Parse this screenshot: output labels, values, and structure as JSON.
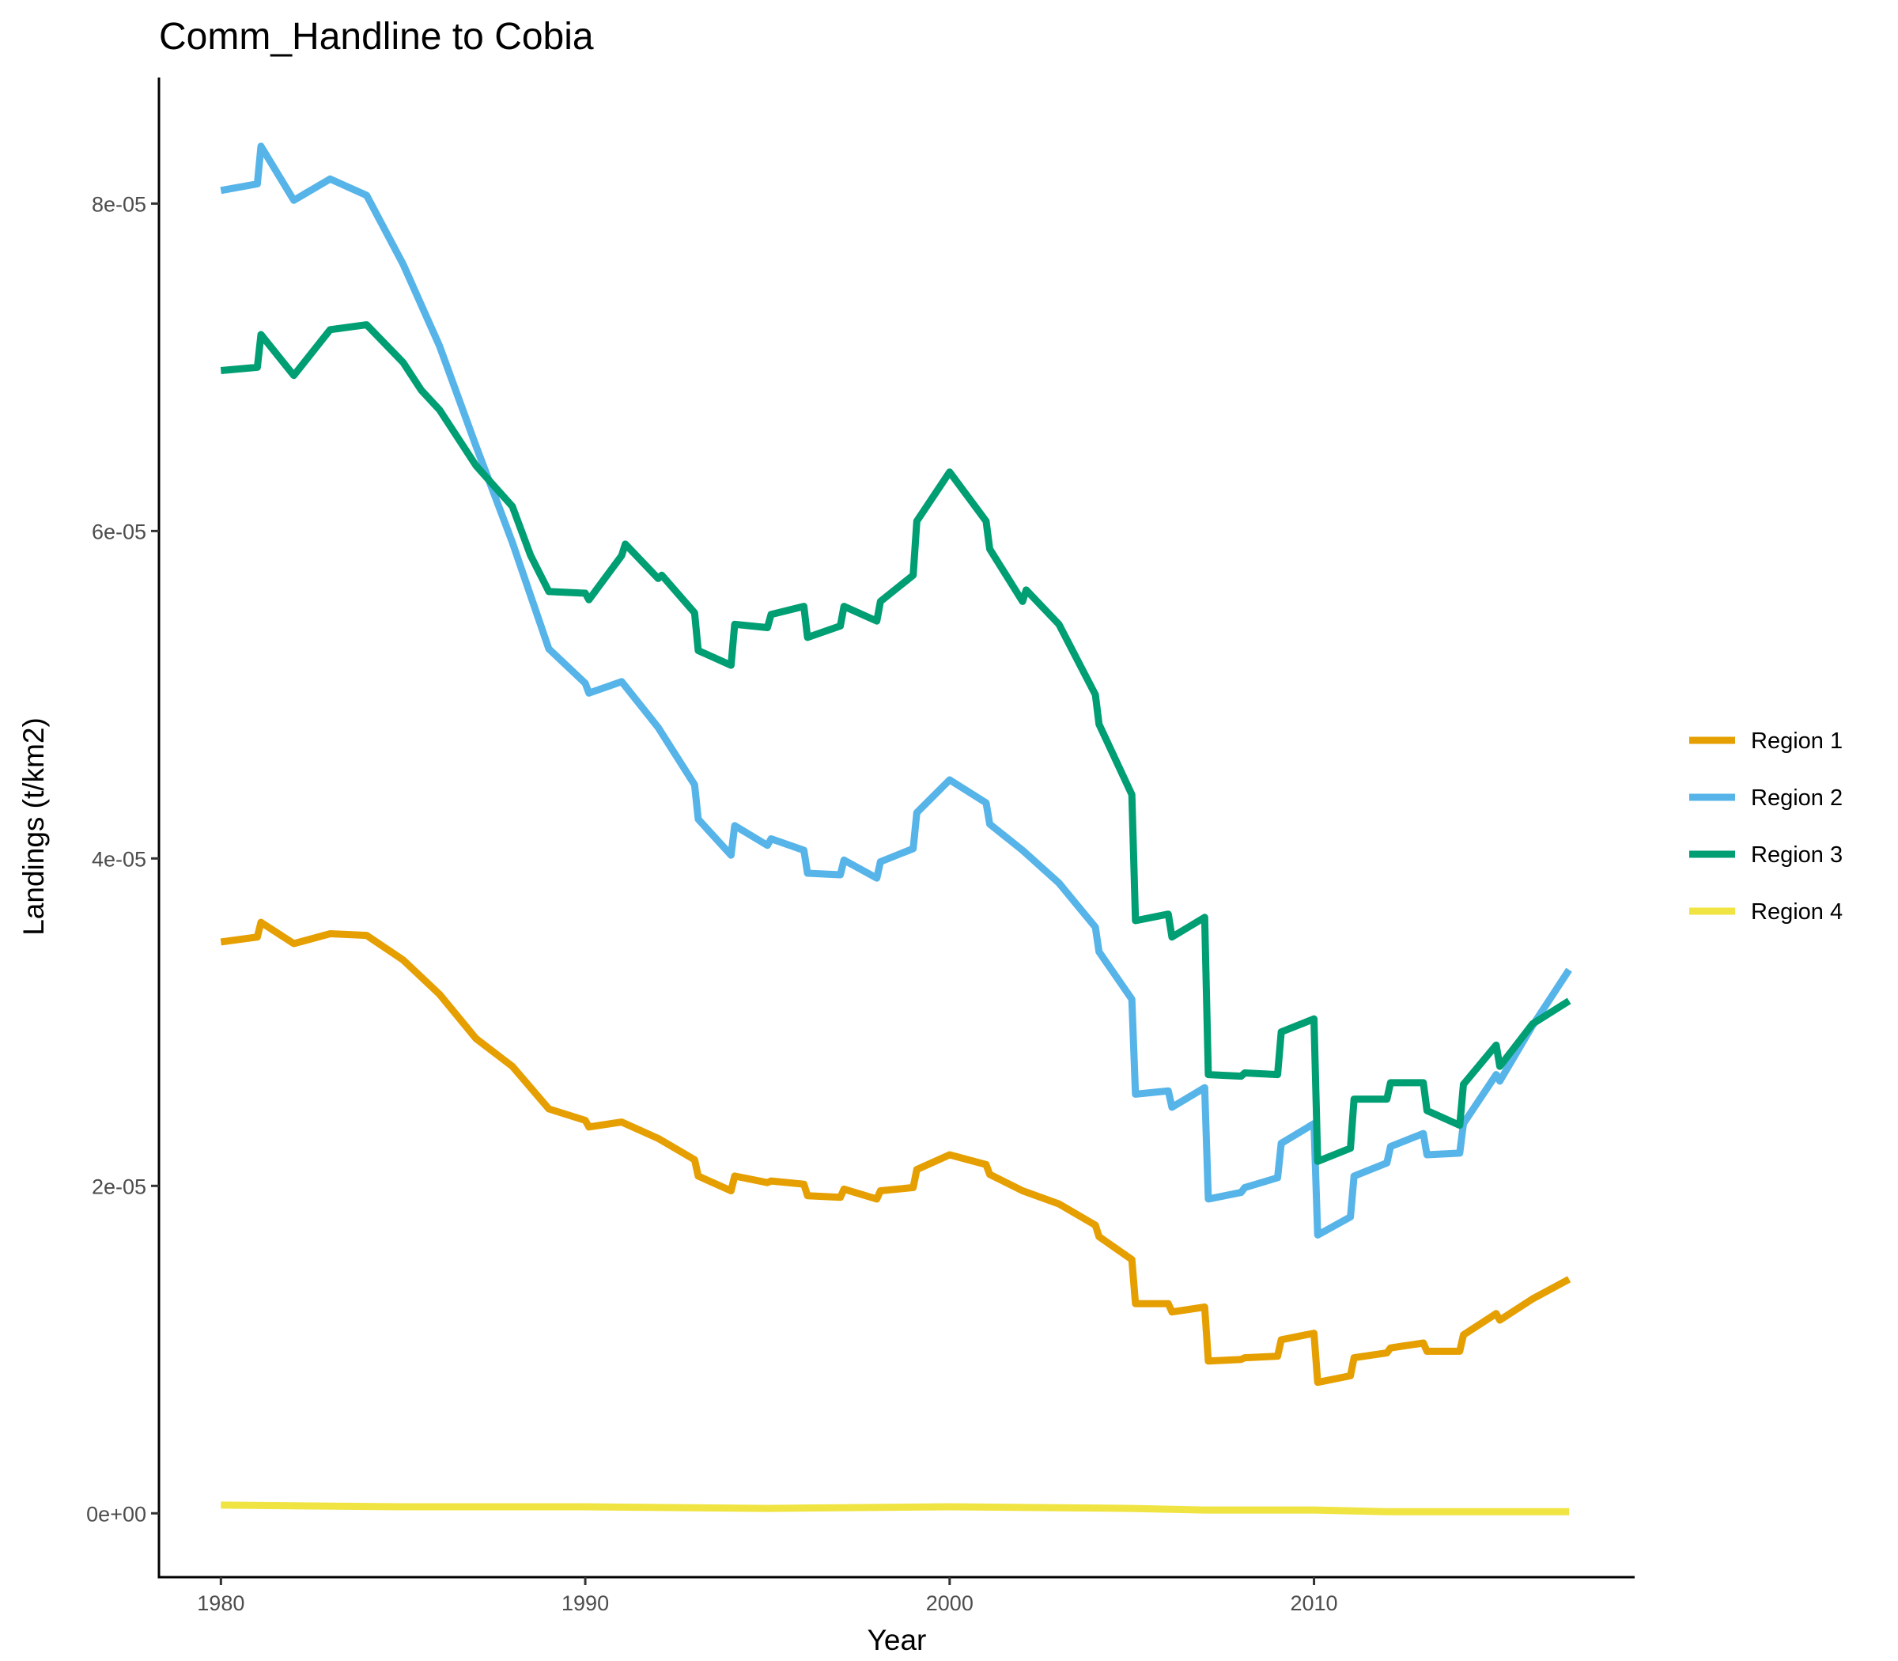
{
  "chart_data": {
    "type": "line",
    "title": "Comm_Handline to Cobia",
    "xlabel": "Year",
    "ylabel": "Landings (t/km2)",
    "xlim": [
      1978.3,
      2018.8
    ],
    "ylim": [
      -3.9e-06,
      8.77e-05
    ],
    "x_ticks": [
      1980,
      1990,
      2000,
      2010
    ],
    "x_tick_labels": [
      "1980",
      "1990",
      "2000",
      "2010"
    ],
    "y_ticks": [
      0,
      2e-05,
      4e-05,
      6e-05,
      8e-05
    ],
    "y_tick_labels": [
      "0e+00",
      "2e-05",
      "4e-05",
      "6e-05",
      "8e-05"
    ],
    "grid": false,
    "legend_position": "right",
    "series": [
      {
        "name": "Region 1",
        "color": "#E69F00",
        "x": [
          1980.0,
          1981.0,
          1981.1,
          1982.0,
          1983.0,
          1984.0,
          1985.0,
          1986.0,
          1987.0,
          1988.0,
          1989.0,
          1990.0,
          1990.1,
          1991.0,
          1992.0,
          1993.0,
          1993.1,
          1994.0,
          1994.1,
          1995.0,
          1995.1,
          1996.0,
          1996.1,
          1997.0,
          1997.1,
          1998.0,
          1998.1,
          1999.0,
          1999.1,
          2000.0,
          2001.0,
          2001.1,
          2002.0,
          2003.0,
          2004.0,
          2004.1,
          2005.0,
          2005.1,
          2006.0,
          2006.1,
          2007.0,
          2007.1,
          2008.0,
          2008.1,
          2009.0,
          2009.1,
          2010.0,
          2010.1,
          2011.0,
          2011.1,
          2012.0,
          2012.1,
          2013.0,
          2013.1,
          2014.0,
          2014.1,
          2015.0,
          2015.1,
          2016.0,
          2017.0
        ],
        "values": [
          3.49e-05,
          3.52e-05,
          3.61e-05,
          3.48e-05,
          3.54e-05,
          3.53e-05,
          3.38e-05,
          3.17e-05,
          2.9e-05,
          2.73e-05,
          2.47e-05,
          2.4e-05,
          2.36e-05,
          2.39e-05,
          2.29e-05,
          2.16e-05,
          2.06e-05,
          1.97e-05,
          2.06e-05,
          2.02e-05,
          2.03e-05,
          2.01e-05,
          1.94e-05,
          1.93e-05,
          1.98e-05,
          1.92e-05,
          1.97e-05,
          1.99e-05,
          2.1e-05,
          2.19e-05,
          2.13e-05,
          2.07e-05,
          1.97e-05,
          1.89e-05,
          1.76e-05,
          1.69e-05,
          1.55e-05,
          1.28e-05,
          1.28e-05,
          1.23e-05,
          1.26e-05,
          9.3e-06,
          9.4e-06,
          9.5e-06,
          9.6e-06,
          1.06e-05,
          1.1e-05,
          8e-06,
          8.4e-06,
          9.5e-06,
          9.8e-06,
          1.01e-05,
          1.04e-05,
          9.9e-06,
          9.9e-06,
          1.09e-05,
          1.22e-05,
          1.18e-05,
          1.31e-05,
          1.43e-05
        ]
      },
      {
        "name": "Region 2",
        "color": "#56B4E9",
        "x": [
          1980.0,
          1981.0,
          1981.1,
          1982.0,
          1983.0,
          1984.0,
          1985.0,
          1986.0,
          1987.0,
          1988.0,
          1989.0,
          1990.0,
          1990.1,
          1991.0,
          1992.0,
          1993.0,
          1993.1,
          1994.0,
          1994.1,
          1995.0,
          1995.1,
          1996.0,
          1996.1,
          1997.0,
          1997.1,
          1998.0,
          1998.1,
          1999.0,
          1999.1,
          2000.0,
          2001.0,
          2001.1,
          2002.0,
          2003.0,
          2004.0,
          2004.1,
          2005.0,
          2005.1,
          2006.0,
          2006.1,
          2007.0,
          2007.1,
          2008.0,
          2008.1,
          2009.0,
          2009.1,
          2010.0,
          2010.1,
          2011.0,
          2011.1,
          2012.0,
          2012.1,
          2013.0,
          2013.1,
          2014.0,
          2014.1,
          2015.0,
          2015.1,
          2016.0,
          2017.0
        ],
        "values": [
          8.08e-05,
          8.12e-05,
          8.35e-05,
          8.02e-05,
          8.15e-05,
          8.05e-05,
          7.63e-05,
          7.13e-05,
          6.52e-05,
          5.93e-05,
          5.28e-05,
          5.07e-05,
          5.01e-05,
          5.08e-05,
          4.8e-05,
          4.45e-05,
          4.24e-05,
          4.02e-05,
          4.2e-05,
          4.08e-05,
          4.12e-05,
          4.05e-05,
          3.91e-05,
          3.9e-05,
          3.99e-05,
          3.88e-05,
          3.98e-05,
          4.06e-05,
          4.28e-05,
          4.48e-05,
          4.34e-05,
          4.21e-05,
          4.05e-05,
          3.85e-05,
          3.58e-05,
          3.43e-05,
          3.14e-05,
          2.56e-05,
          2.58e-05,
          2.48e-05,
          2.6e-05,
          1.92e-05,
          1.96e-05,
          1.99e-05,
          2.05e-05,
          2.26e-05,
          2.38e-05,
          1.7e-05,
          1.81e-05,
          2.06e-05,
          2.14e-05,
          2.24e-05,
          2.32e-05,
          2.19e-05,
          2.2e-05,
          2.38e-05,
          2.68e-05,
          2.64e-05,
          2.98e-05,
          3.32e-05
        ]
      },
      {
        "name": "Region 3",
        "color": "#009E73",
        "x": [
          1980.0,
          1981.0,
          1981.1,
          1982.0,
          1983.0,
          1984.0,
          1985.0,
          1985.5,
          1986.0,
          1987.0,
          1988.0,
          1988.5,
          1989.0,
          1990.0,
          1990.1,
          1991.0,
          1991.1,
          1992.0,
          1992.1,
          1993.0,
          1993.1,
          1994.0,
          1994.1,
          1995.0,
          1995.1,
          1996.0,
          1996.1,
          1997.0,
          1997.1,
          1998.0,
          1998.1,
          1999.0,
          1999.1,
          2000.0,
          2001.0,
          2001.1,
          2002.0,
          2002.1,
          2003.0,
          2004.0,
          2004.1,
          2005.0,
          2005.1,
          2006.0,
          2006.1,
          2007.0,
          2007.1,
          2008.0,
          2008.1,
          2009.0,
          2009.1,
          2010.0,
          2010.1,
          2011.0,
          2011.1,
          2012.0,
          2012.1,
          2013.0,
          2013.1,
          2014.0,
          2014.1,
          2015.0,
          2015.1,
          2016.0,
          2017.0
        ],
        "values": [
          6.98e-05,
          7e-05,
          7.2e-05,
          6.95e-05,
          7.23e-05,
          7.26e-05,
          7.03e-05,
          6.86e-05,
          6.74e-05,
          6.4e-05,
          6.15e-05,
          5.85e-05,
          5.63e-05,
          5.62e-05,
          5.58e-05,
          5.85e-05,
          5.92e-05,
          5.71e-05,
          5.73e-05,
          5.5e-05,
          5.27e-05,
          5.18e-05,
          5.43e-05,
          5.41e-05,
          5.49e-05,
          5.54e-05,
          5.35e-05,
          5.42e-05,
          5.54e-05,
          5.45e-05,
          5.57e-05,
          5.73e-05,
          6.06e-05,
          6.36e-05,
          6.06e-05,
          5.89e-05,
          5.57e-05,
          5.64e-05,
          5.43e-05,
          5e-05,
          4.82e-05,
          4.39e-05,
          3.62e-05,
          3.66e-05,
          3.52e-05,
          3.64e-05,
          2.68e-05,
          2.67e-05,
          2.69e-05,
          2.68e-05,
          2.94e-05,
          3.02e-05,
          2.15e-05,
          2.23e-05,
          2.53e-05,
          2.53e-05,
          2.63e-05,
          2.63e-05,
          2.46e-05,
          2.37e-05,
          2.62e-05,
          2.86e-05,
          2.73e-05,
          2.99e-05,
          3.13e-05
        ]
      },
      {
        "name": "Region 4",
        "color": "#F0E442",
        "x": [
          1980.0,
          1985.0,
          1990.0,
          1995.0,
          2000.0,
          2005.0,
          2007.0,
          2010.0,
          2012.0,
          2014.0,
          2017.0
        ],
        "values": [
          5e-07,
          4e-07,
          4e-07,
          3e-07,
          4e-07,
          3e-07,
          2e-07,
          2e-07,
          1e-07,
          1e-07,
          1e-07
        ]
      }
    ]
  }
}
